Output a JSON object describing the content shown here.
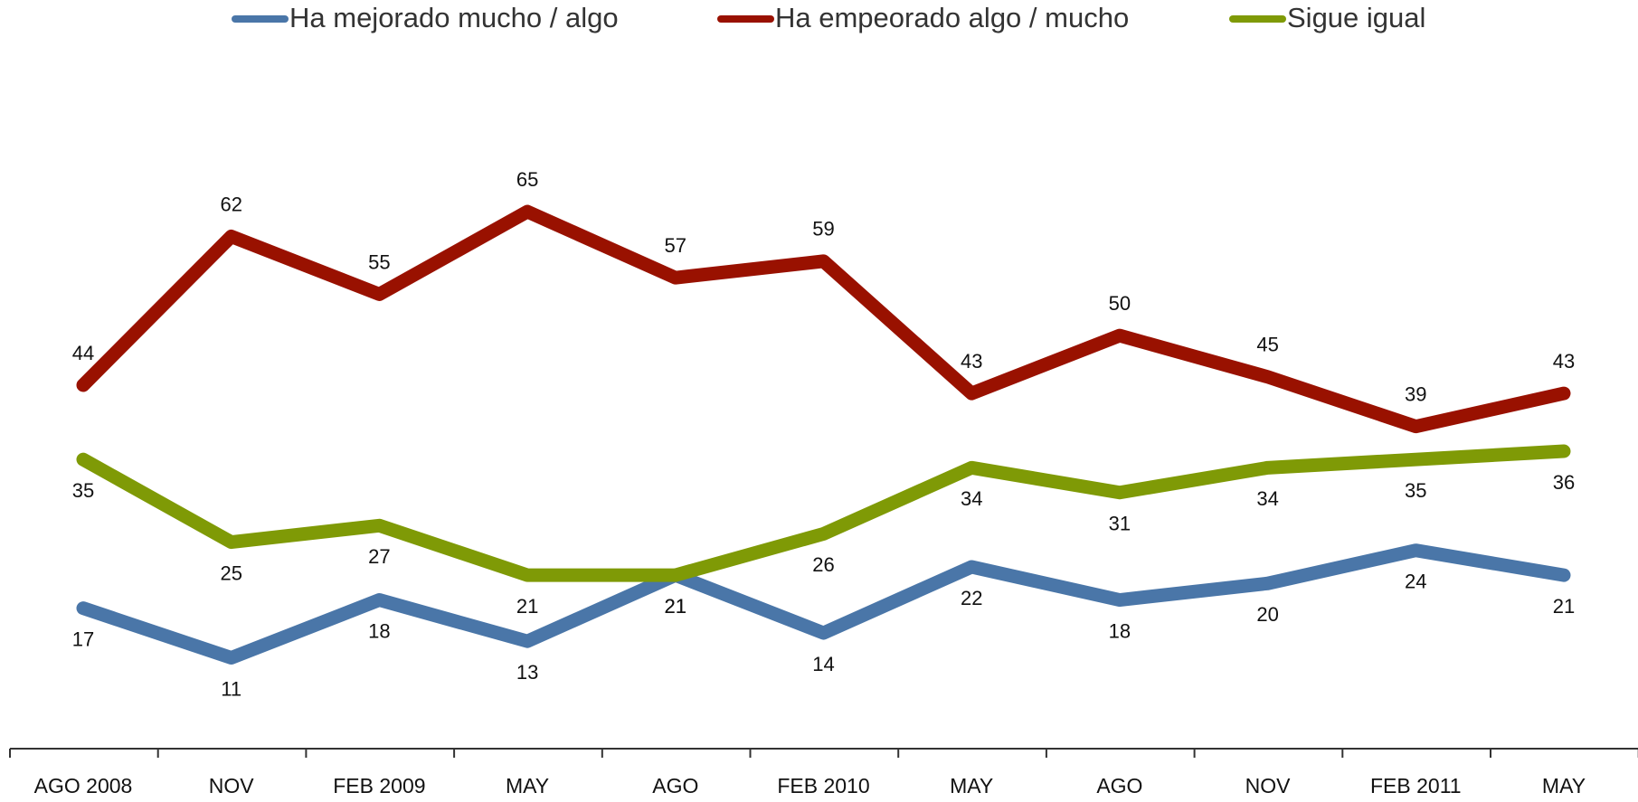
{
  "chart_data": {
    "type": "line",
    "categories": [
      "AGO 2008",
      "NOV",
      "FEB 2009",
      "MAY",
      "AGO",
      "FEB 2010",
      "MAY",
      "AGO",
      "NOV",
      "FEB 2011",
      "MAY"
    ],
    "series": [
      {
        "name": "Ha mejorado mucho / algo",
        "color": "#4a76a8",
        "values": [
          17,
          11,
          18,
          13,
          21,
          14,
          22,
          18,
          20,
          24,
          21
        ]
      },
      {
        "name": "Ha empeorado algo / mucho",
        "color": "#991100",
        "values": [
          44,
          62,
          55,
          65,
          57,
          59,
          43,
          50,
          45,
          39,
          43
        ]
      },
      {
        "name": "Sigue igual",
        "color": "#7f9a06",
        "values": [
          35,
          25,
          27,
          21,
          21,
          26,
          34,
          31,
          34,
          35,
          36
        ]
      }
    ],
    "ylim": [
      0,
      80
    ],
    "legend": "top"
  }
}
